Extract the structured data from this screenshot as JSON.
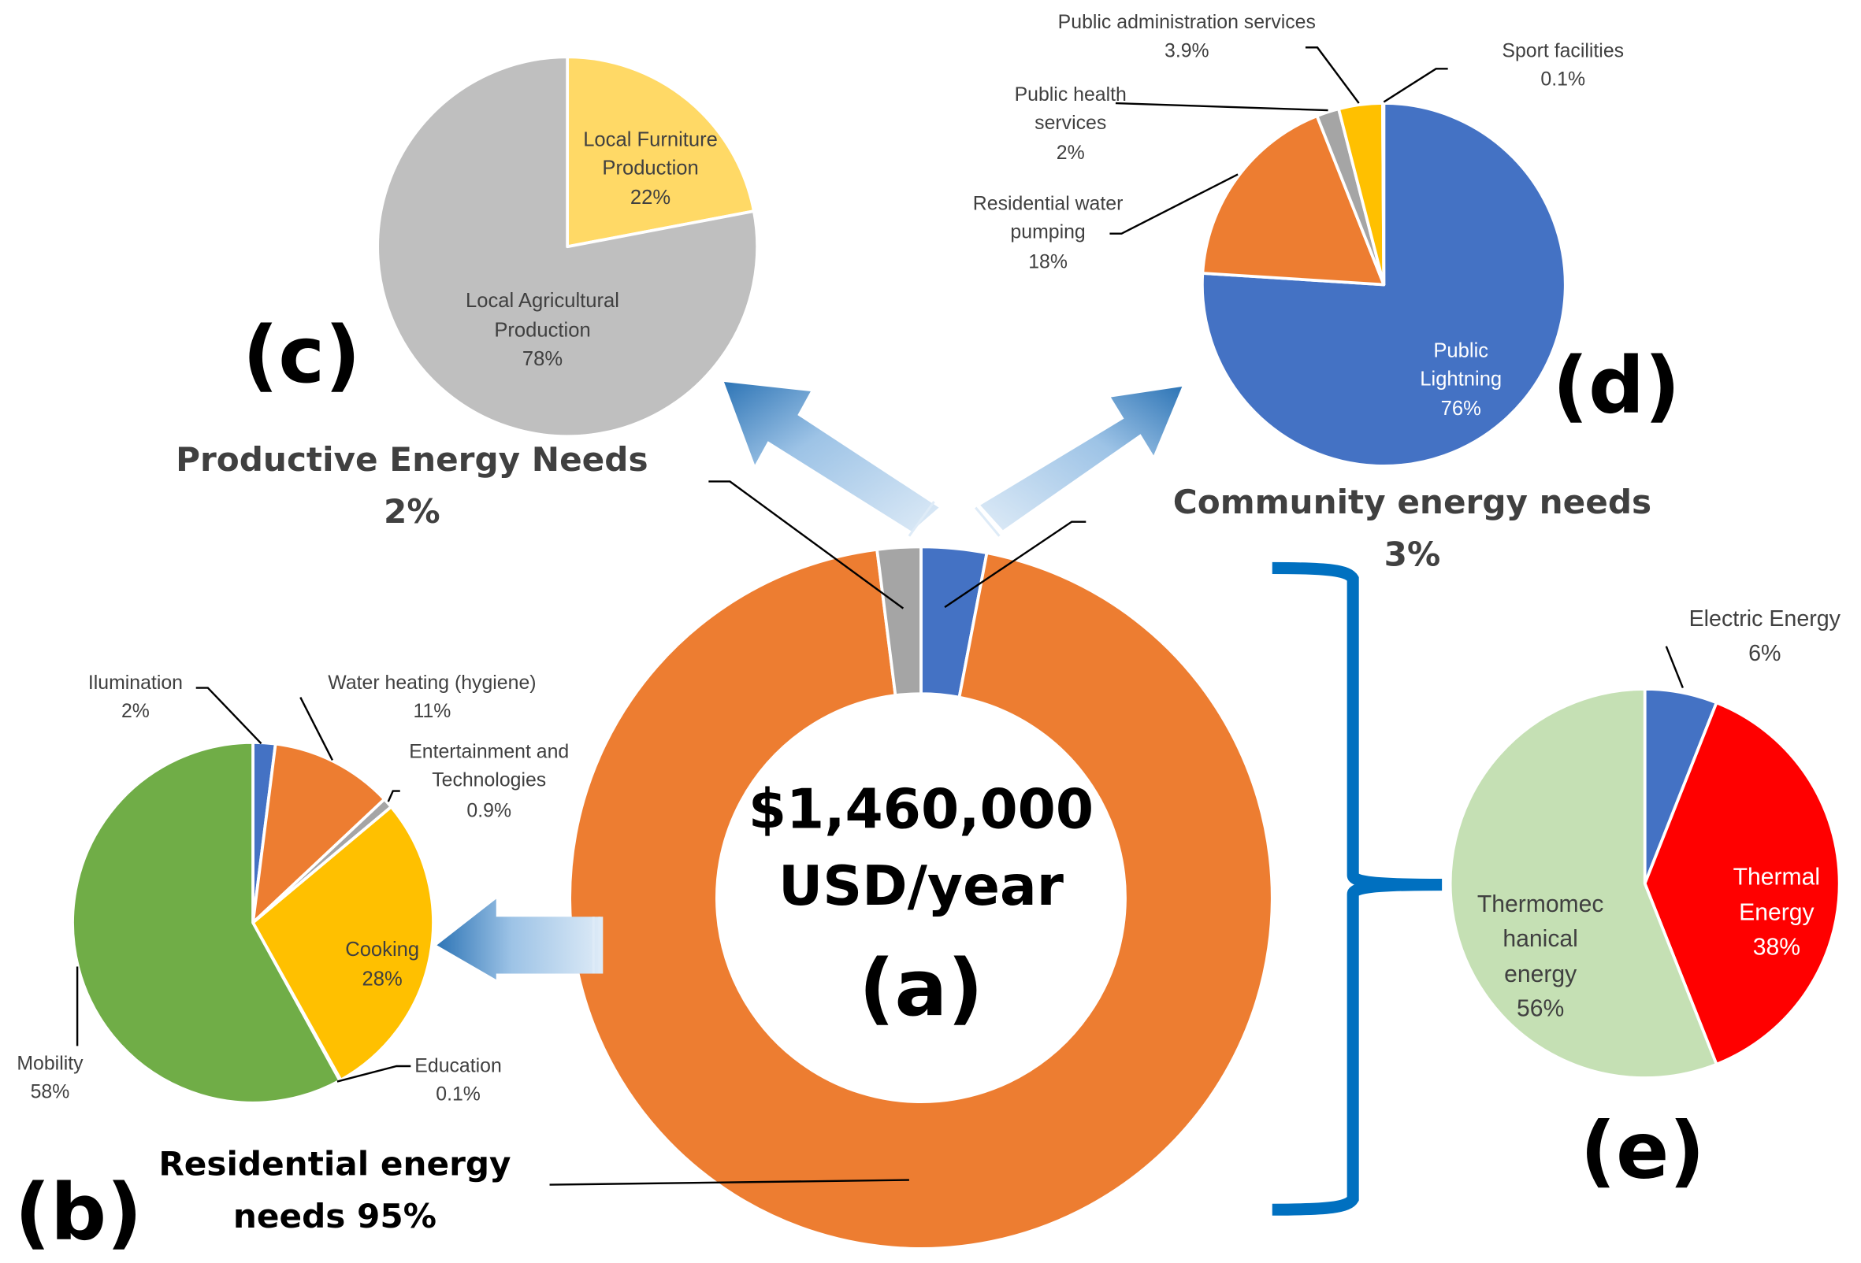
{
  "colors": {
    "blue": "#4472C4",
    "orange": "#ED7D31",
    "grey": "#A5A5A5",
    "light_grey": "#BFBFBF",
    "yellow": "#FFC000",
    "light_yellow": "#FFD966",
    "green": "#70AD47",
    "light_green": "#C5E0B4",
    "red": "#FF0000",
    "bracket_blue": "#0070C0",
    "label_text": "#404040"
  },
  "panel_a": {
    "total_line1": "$1,460,000",
    "total_line2": "USD/year",
    "panel_label": "(a)"
  },
  "panel_b": {
    "panel_label": "(b)",
    "heading_line1": "Residential energy",
    "heading_line2": "needs 95%",
    "labels": {
      "illumination": [
        "Ilumination",
        "2%"
      ],
      "water_heating": [
        "Water heating (hygiene)",
        "11%"
      ],
      "entertainment": [
        "Entertainment and",
        "Technologies",
        "0.9%"
      ],
      "cooking": [
        "Cooking",
        "28%"
      ],
      "education": [
        "Education",
        "0.1%"
      ],
      "mobility": [
        "Mobility",
        "58%"
      ]
    }
  },
  "panel_c": {
    "panel_label": "(c)",
    "heading_line1": "Productive Energy Needs",
    "heading_line2": "2%",
    "labels": {
      "furniture": [
        "Local Furniture",
        "Production",
        "22%"
      ],
      "agricultural": [
        "Local Agricultural",
        "Production",
        "78%"
      ]
    }
  },
  "panel_d": {
    "panel_label": "(d)",
    "heading_line1": "Community energy needs",
    "heading_line2": "3%",
    "labels": {
      "public_admin": [
        "Public administration services",
        "3.9%"
      ],
      "sport": [
        "Sport facilities",
        "0.1%"
      ],
      "public_health": [
        "Public health",
        "services",
        "2%"
      ],
      "water_pumping": [
        "Residential water",
        "pumping",
        "18%"
      ],
      "lighting": [
        "Public",
        "Lightning",
        "76%"
      ]
    }
  },
  "panel_e": {
    "panel_label": "(e)",
    "labels": {
      "electric": [
        "Electric Energy",
        "6%"
      ],
      "thermal": [
        "Thermal",
        "Energy",
        "38%"
      ],
      "thermomechanical": [
        "Thermomec",
        "hanical",
        "energy",
        "56%"
      ]
    }
  },
  "chart_data": [
    {
      "type": "pie",
      "title": "(a) Total energy expenditure: $1,460,000 USD/year",
      "donut": true,
      "categories": [
        "Community energy needs",
        "Residential energy needs",
        "Productive Energy Needs"
      ],
      "values": [
        3,
        95,
        2
      ],
      "unit": "%",
      "colors": [
        "#4472C4",
        "#ED7D31",
        "#A5A5A5"
      ]
    },
    {
      "type": "pie",
      "title": "(b) Residential energy needs 95%",
      "categories": [
        "Ilumination",
        "Water heating (hygiene)",
        "Entertainment and Technologies",
        "Cooking",
        "Education",
        "Mobility"
      ],
      "values": [
        2,
        11,
        0.9,
        28,
        0.1,
        58
      ],
      "unit": "%",
      "colors": [
        "#4472C4",
        "#ED7D31",
        "#A5A5A5",
        "#FFC000",
        "#5B9BD5",
        "#70AD47"
      ]
    },
    {
      "type": "pie",
      "title": "(c) Productive Energy Needs 2%",
      "categories": [
        "Local Furniture Production",
        "Local Agricultural Production"
      ],
      "values": [
        22,
        78
      ],
      "unit": "%",
      "colors": [
        "#FFD966",
        "#BFBFBF"
      ]
    },
    {
      "type": "pie",
      "title": "(d) Community energy needs 3%",
      "categories": [
        "Public Lightning",
        "Residential water pumping",
        "Public health services",
        "Public administration services",
        "Sport facilities"
      ],
      "values": [
        76,
        18,
        2,
        3.9,
        0.1
      ],
      "unit": "%",
      "colors": [
        "#4472C4",
        "#ED7D31",
        "#A5A5A5",
        "#FFC000",
        "#5B9BD5"
      ]
    },
    {
      "type": "pie",
      "title": "(e) Residential energy by type",
      "categories": [
        "Electric Energy",
        "Thermal Energy",
        "Thermomechanical energy"
      ],
      "values": [
        6,
        38,
        56
      ],
      "unit": "%",
      "colors": [
        "#4472C4",
        "#FF0000",
        "#C5E0B4"
      ]
    }
  ]
}
